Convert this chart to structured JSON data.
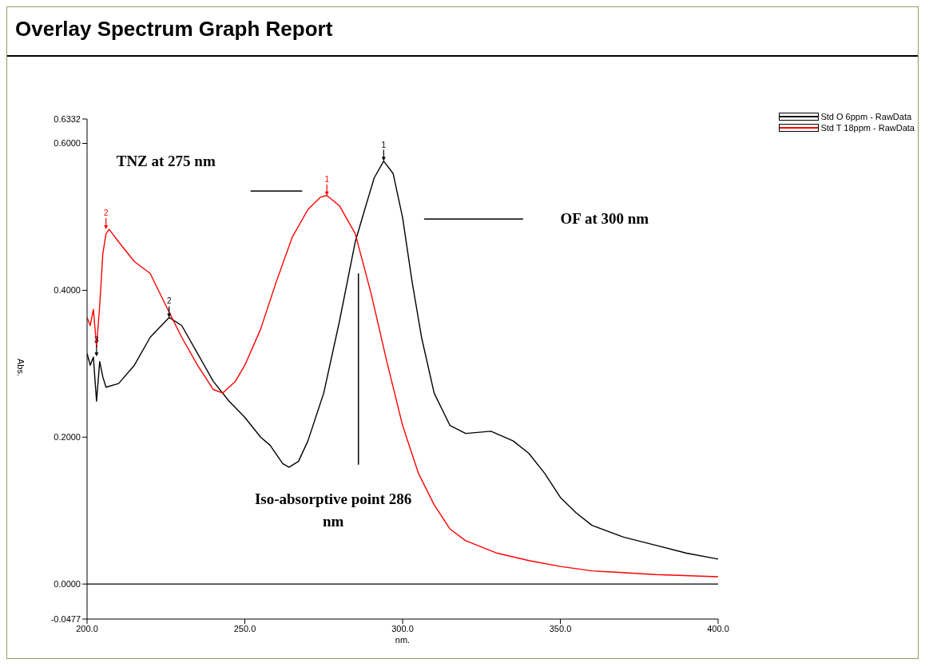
{
  "chart_data": {
    "type": "line",
    "title": "Overlay Spectrum Graph Report",
    "xlabel": "nm.",
    "ylabel": "Abs.",
    "series": [
      {
        "name": "Std O 6ppm - RawData",
        "color": "#000000",
        "x": [
          200,
          201,
          202,
          203,
          204,
          205,
          206,
          210,
          215,
          220,
          226,
          230,
          235,
          240,
          245,
          250,
          255,
          258,
          262,
          264,
          267,
          270,
          275,
          280,
          285,
          288,
          291,
          294,
          297,
          300,
          303,
          306,
          310,
          315,
          320,
          328,
          335,
          340,
          345,
          350,
          355,
          360,
          370,
          380,
          390,
          400
        ],
        "values": [
          0.314,
          0.298,
          0.309,
          0.249,
          0.303,
          0.282,
          0.268,
          0.273,
          0.298,
          0.336,
          0.363,
          0.352,
          0.314,
          0.276,
          0.249,
          0.227,
          0.2,
          0.189,
          0.164,
          0.159,
          0.167,
          0.195,
          0.26,
          0.358,
          0.466,
          0.51,
          0.553,
          0.576,
          0.559,
          0.499,
          0.412,
          0.336,
          0.26,
          0.216,
          0.205,
          0.208,
          0.195,
          0.178,
          0.151,
          0.118,
          0.097,
          0.08,
          0.064,
          0.053,
          0.042,
          0.034
        ]
      },
      {
        "name": "Std T 18ppm - RawData",
        "color": "#ff0000",
        "x": [
          200,
          201,
          202,
          203,
          204,
          205,
          206,
          207,
          210,
          215,
          220,
          225,
          230,
          235,
          240,
          243,
          247,
          250,
          255,
          260,
          265,
          270,
          274,
          276,
          280,
          285,
          290,
          295,
          300,
          305,
          310,
          315,
          320,
          330,
          340,
          350,
          360,
          380,
          400
        ],
        "values": [
          0.363,
          0.352,
          0.374,
          0.323,
          0.379,
          0.45,
          0.477,
          0.483,
          0.466,
          0.439,
          0.423,
          0.379,
          0.336,
          0.298,
          0.265,
          0.26,
          0.276,
          0.298,
          0.347,
          0.412,
          0.472,
          0.51,
          0.527,
          0.529,
          0.515,
          0.477,
          0.396,
          0.303,
          0.216,
          0.151,
          0.108,
          0.075,
          0.059,
          0.042,
          0.032,
          0.024,
          0.018,
          0.013,
          0.01
        ]
      }
    ],
    "xlim": [
      200,
      400
    ],
    "xticks": [
      {
        "value": 200,
        "label": "200.0"
      },
      {
        "value": 250,
        "label": "250.0"
      },
      {
        "value": 300,
        "label": "300.0"
      },
      {
        "value": 350,
        "label": "350.0"
      },
      {
        "value": 400,
        "label": "400.0"
      }
    ],
    "ylim": [
      -0.0477,
      0.6332
    ],
    "yticks": [
      {
        "value": -0.0477,
        "label": "-0.0477"
      },
      {
        "value": 0,
        "label": "0.0000"
      },
      {
        "value": 0.2,
        "label": "0.2000"
      },
      {
        "value": 0.4,
        "label": "0.4000"
      },
      {
        "value": 0.6,
        "label": "0.6000"
      },
      {
        "value": 0.6332,
        "label": "0.6332"
      }
    ],
    "ref_lines": [
      {
        "axis": "y",
        "value": 0,
        "color": "#000000"
      }
    ],
    "annotations": [
      "TNZ at 275 nm",
      "OF at 300 nm",
      "Iso-absorptive point 286 nm",
      {
        "text": "1",
        "x": 294,
        "y": 0.576
      },
      {
        "text": "2",
        "x": 226,
        "y": 0.363
      },
      {
        "text": "3",
        "x": 203,
        "y": 0.31
      },
      {
        "text": "1",
        "x": 276,
        "y": 0.529
      },
      {
        "text": "2",
        "x": 206,
        "y": 0.483
      }
    ],
    "legend": "top right",
    "grid": false,
    "marker": "none"
  }
}
